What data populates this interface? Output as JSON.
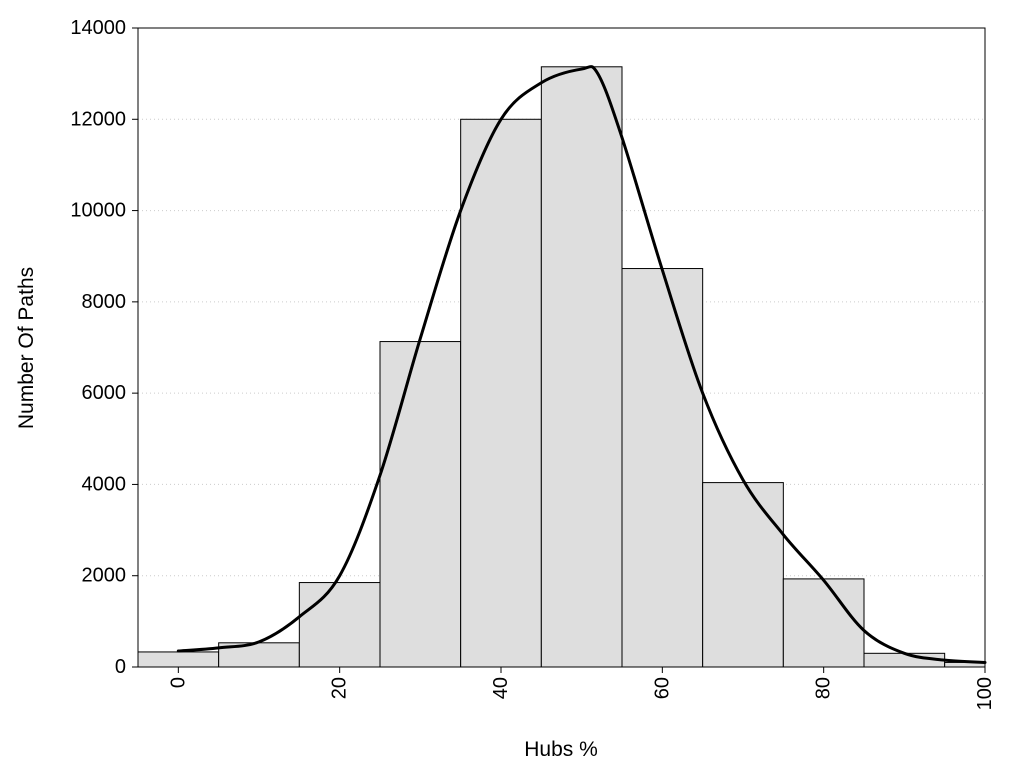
{
  "chart_data": {
    "type": "bar",
    "subtype": "histogram-with-density-curve",
    "xlabel": "Hubs %",
    "ylabel": "Number Of Paths",
    "xlim": [
      -5,
      100
    ],
    "ylim": [
      0,
      14000
    ],
    "x_ticks": [
      0,
      20,
      40,
      60,
      80,
      100
    ],
    "x_tick_labels": [
      "0",
      "20",
      "40",
      "60",
      "80",
      "100"
    ],
    "x_tick_rotation": "vertical",
    "y_ticks": [
      0,
      2000,
      4000,
      6000,
      8000,
      10000,
      12000,
      14000
    ],
    "y_tick_labels": [
      "0",
      "2000",
      "4000",
      "6000",
      "8000",
      "10000",
      "12000",
      "14000"
    ],
    "grid": "horizontal dotted",
    "legend": "none",
    "bins": [
      {
        "start": -5,
        "end": 5,
        "value": 330
      },
      {
        "start": 5,
        "end": 15,
        "value": 530
      },
      {
        "start": 15,
        "end": 25,
        "value": 1850
      },
      {
        "start": 25,
        "end": 35,
        "value": 7130
      },
      {
        "start": 35,
        "end": 45,
        "value": 12000
      },
      {
        "start": 45,
        "end": 55,
        "value": 13150
      },
      {
        "start": 55,
        "end": 65,
        "value": 8730
      },
      {
        "start": 65,
        "end": 75,
        "value": 4040
      },
      {
        "start": 75,
        "end": 85,
        "value": 1930
      },
      {
        "start": 85,
        "end": 95,
        "value": 300
      },
      {
        "start": 95,
        "end": 105,
        "value": 100
      }
    ],
    "curve": {
      "x": [
        0,
        5,
        10,
        15,
        20,
        25,
        30,
        35,
        40,
        45,
        50,
        52,
        55,
        60,
        65,
        70,
        75,
        80,
        85,
        90,
        95,
        100
      ],
      "y": [
        350,
        420,
        550,
        1100,
        2000,
        4200,
        7200,
        10000,
        12000,
        12800,
        13100,
        13000,
        11600,
        8700,
        6000,
        4100,
        2900,
        1900,
        800,
        300,
        150,
        100
      ]
    },
    "colors": {
      "bar_fill": "#dedede",
      "bar_stroke": "#000000",
      "curve": "#000000",
      "grid": "#cccccc"
    }
  }
}
